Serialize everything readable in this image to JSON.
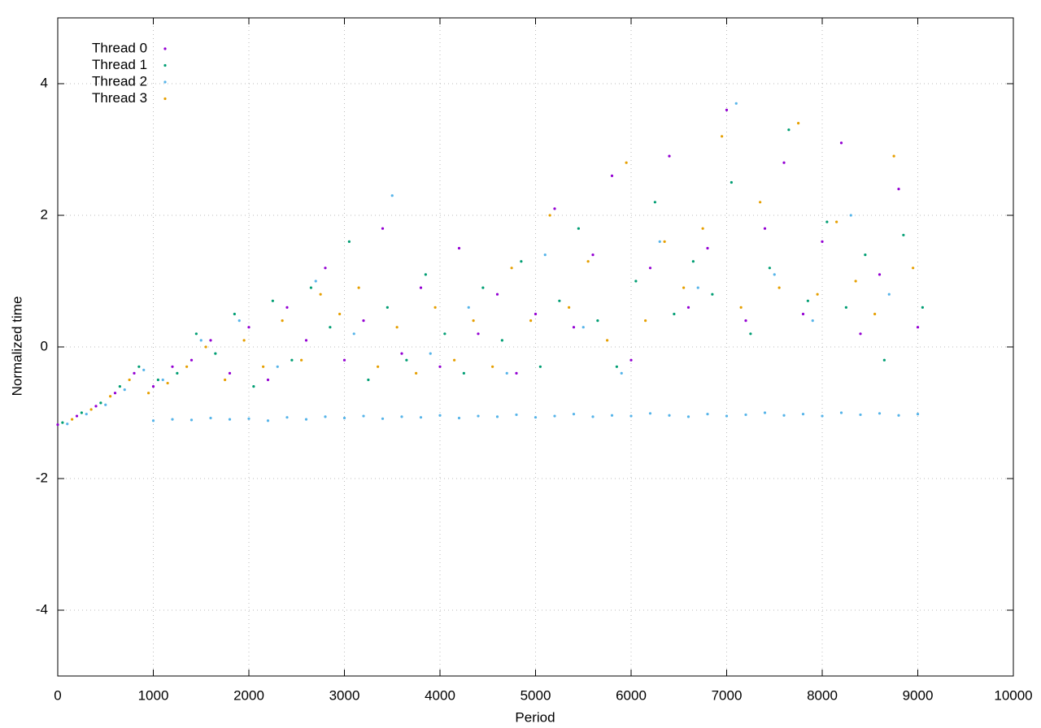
{
  "chart_data": {
    "type": "scatter",
    "xlabel": "Period",
    "ylabel": "Normalized time",
    "xlim": [
      0,
      10000
    ],
    "ylim": [
      -5,
      5
    ],
    "xticks": [
      0,
      1000,
      2000,
      3000,
      4000,
      5000,
      6000,
      7000,
      8000,
      9000,
      10000
    ],
    "yticks": [
      -4,
      -2,
      0,
      2,
      4
    ],
    "grid": true,
    "legend": "top-left",
    "series": [
      {
        "name": "Thread 0",
        "color": "#9400d3",
        "x": [
          0,
          200,
          400,
          600,
          800,
          1000,
          1200,
          1400,
          1600,
          1800,
          2000,
          2200,
          2400,
          2600,
          2800,
          3000,
          3200,
          3400,
          3600,
          3800,
          4000,
          4200,
          4400,
          4600,
          4800,
          5000,
          5200,
          5400,
          5600,
          5800,
          6000,
          6200,
          6400,
          6600,
          6800,
          7000,
          7200,
          7400,
          7600,
          7800,
          8000,
          8200,
          8400,
          8600,
          8800,
          9000
        ],
        "values": [
          -1.18,
          -1.05,
          -0.9,
          -0.7,
          -0.4,
          -0.6,
          -0.3,
          -0.2,
          0.1,
          -0.4,
          0.3,
          -0.5,
          0.6,
          0.1,
          1.2,
          -0.2,
          0.4,
          1.8,
          -0.1,
          0.9,
          -0.3,
          1.5,
          0.2,
          0.8,
          -0.4,
          0.5,
          2.1,
          0.3,
          1.4,
          2.6,
          -0.2,
          1.2,
          2.9,
          0.6,
          1.5,
          3.6,
          0.4,
          1.8,
          2.8,
          0.5,
          1.6,
          3.1,
          0.2,
          1.1,
          2.4,
          0.3
        ]
      },
      {
        "name": "Thread 1",
        "color": "#009e73",
        "x": [
          50,
          250,
          450,
          650,
          850,
          1050,
          1250,
          1450,
          1650,
          1850,
          2050,
          2250,
          2450,
          2650,
          2850,
          3050,
          3250,
          3450,
          3650,
          3850,
          4050,
          4250,
          4450,
          4650,
          4850,
          5050,
          5250,
          5450,
          5650,
          5850,
          6050,
          6250,
          6450,
          6650,
          6850,
          7050,
          7250,
          7450,
          7650,
          7850,
          8050,
          8250,
          8450,
          8650,
          8850,
          9050
        ],
        "values": [
          -1.15,
          -1.0,
          -0.85,
          -0.6,
          -0.3,
          -0.5,
          -0.4,
          0.2,
          -0.1,
          0.5,
          -0.6,
          0.7,
          -0.2,
          0.9,
          0.3,
          1.6,
          -0.5,
          0.6,
          -0.2,
          1.1,
          0.2,
          -0.4,
          0.9,
          0.1,
          1.3,
          -0.3,
          0.7,
          1.8,
          0.4,
          -0.3,
          1.0,
          2.2,
          0.5,
          1.3,
          0.8,
          2.5,
          0.2,
          1.2,
          3.3,
          0.7,
          1.9,
          0.6,
          1.4,
          -0.2,
          1.7,
          0.6
        ]
      },
      {
        "name": "Thread 2",
        "color": "#56b4e9",
        "x": [
          100,
          300,
          500,
          700,
          900,
          1000,
          1200,
          1400,
          1600,
          1800,
          2000,
          2200,
          2400,
          2600,
          2800,
          3000,
          3200,
          3400,
          3600,
          3800,
          4000,
          4200,
          4400,
          4600,
          4800,
          5000,
          5200,
          5400,
          5600,
          5800,
          6000,
          6200,
          6400,
          6600,
          6800,
          7000,
          7200,
          7400,
          7600,
          7800,
          8000,
          8200,
          8400,
          8600,
          8800,
          9000,
          1100,
          1500,
          1900,
          2300,
          2700,
          3100,
          3500,
          3900,
          4300,
          4700,
          5100,
          5500,
          5900,
          6300,
          6700,
          7100,
          7500,
          7900,
          8300,
          8700
        ],
        "values": [
          -1.17,
          -1.02,
          -0.88,
          -0.65,
          -0.35,
          -1.12,
          -1.1,
          -1.11,
          -1.08,
          -1.1,
          -1.09,
          -1.12,
          -1.07,
          -1.1,
          -1.06,
          -1.08,
          -1.05,
          -1.09,
          -1.06,
          -1.07,
          -1.04,
          -1.08,
          -1.05,
          -1.06,
          -1.03,
          -1.07,
          -1.05,
          -1.02,
          -1.06,
          -1.04,
          -1.05,
          -1.01,
          -1.04,
          -1.06,
          -1.02,
          -1.05,
          -1.03,
          -1.0,
          -1.04,
          -1.02,
          -1.05,
          -1.0,
          -1.03,
          -1.01,
          -1.04,
          -1.02,
          -0.5,
          0.1,
          0.4,
          -0.3,
          1.0,
          0.2,
          2.3,
          -0.1,
          0.6,
          -0.4,
          1.4,
          0.3,
          -0.4,
          1.6,
          0.9,
          3.7,
          1.1,
          0.4,
          2.0,
          0.8
        ]
      },
      {
        "name": "Thread 3",
        "color": "#e69f00",
        "x": [
          150,
          350,
          550,
          750,
          950,
          1150,
          1350,
          1550,
          1750,
          1950,
          2150,
          2350,
          2550,
          2750,
          2950,
          3150,
          3350,
          3550,
          3750,
          3950,
          4150,
          4350,
          4550,
          4750,
          4950,
          5150,
          5350,
          5550,
          5750,
          5950,
          6150,
          6350,
          6550,
          6750,
          6950,
          7150,
          7350,
          7550,
          7750,
          7950,
          8150,
          8350,
          8550,
          8750,
          8950
        ],
        "values": [
          -1.1,
          -0.95,
          -0.75,
          -0.5,
          -0.7,
          -0.55,
          -0.3,
          0.0,
          -0.5,
          0.1,
          -0.3,
          0.4,
          -0.2,
          0.8,
          0.5,
          0.9,
          -0.3,
          0.3,
          -0.4,
          0.6,
          -0.2,
          0.4,
          -0.3,
          1.2,
          0.4,
          2.0,
          0.6,
          1.3,
          0.1,
          2.8,
          0.4,
          1.6,
          0.9,
          1.8,
          3.2,
          0.6,
          2.2,
          0.9,
          3.4,
          0.8,
          1.9,
          1.0,
          0.5,
          2.9,
          1.2
        ]
      }
    ]
  }
}
